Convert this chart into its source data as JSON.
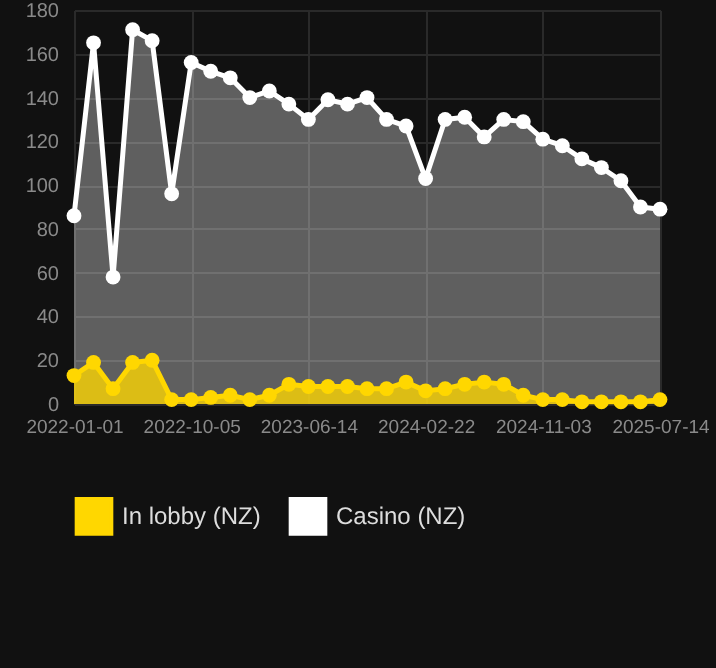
{
  "chart_data": {
    "type": "area",
    "categories": [
      "2022-01-01",
      null,
      null,
      null,
      null,
      null,
      "2022-10-05",
      null,
      null,
      null,
      null,
      null,
      "2023-06-14",
      null,
      null,
      null,
      null,
      null,
      "2024-02-22",
      null,
      null,
      null,
      null,
      null,
      "2024-11-03",
      null,
      null,
      null,
      null,
      null,
      "2025-07-14"
    ],
    "series": [
      {
        "name": "In lobby (NZ)",
        "color": "#ffd700",
        "values": [
          13,
          19,
          7,
          19,
          20,
          2,
          2,
          3,
          4,
          2,
          4,
          9,
          8,
          8,
          8,
          7,
          7,
          10,
          6,
          7,
          9,
          10,
          9,
          4,
          2,
          2,
          1,
          1,
          1,
          1,
          2
        ]
      },
      {
        "name": "Casino (NZ)",
        "color": "#ffffff",
        "values": [
          86,
          165,
          58,
          171,
          166,
          96,
          156,
          152,
          149,
          140,
          143,
          137,
          130,
          139,
          137,
          140,
          130,
          127,
          103,
          130,
          131,
          122,
          130,
          129,
          121,
          118,
          112,
          108,
          102,
          90,
          89
        ]
      }
    ],
    "ylim": [
      0,
      180
    ],
    "yticks": [
      0,
      20,
      40,
      60,
      80,
      100,
      120,
      140,
      160,
      180
    ],
    "grid": true,
    "legend": "bottom",
    "marker": "circle"
  }
}
